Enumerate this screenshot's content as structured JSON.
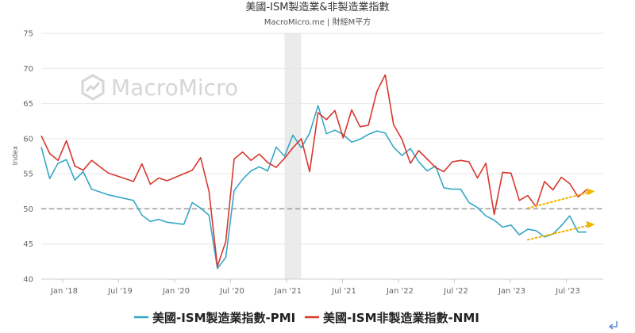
{
  "chart_data": {
    "type": "line",
    "title": "美國-ISM製造業&非製造業指數",
    "subtitle": "MacroMicro.me | 財經M平方",
    "watermark": "MacroMicro",
    "ylabel": "Index",
    "ylim": [
      40,
      75
    ],
    "yticks": [
      "40",
      "45",
      "50",
      "55",
      "60",
      "65",
      "70",
      "75"
    ],
    "xticks": [
      "Jan '18",
      "Jul '19",
      "Jan '20",
      "Jul '20",
      "Jan '21",
      "Jul '21",
      "Jan '22",
      "Jul '22",
      "Jan '23",
      "Jul '23"
    ],
    "reference_line": 50,
    "shaded_period": [
      "2020-02",
      "2020-04"
    ],
    "colors": {
      "PMI": "#35a7c6",
      "NMI": "#d8382e",
      "trend": "#f2b400",
      "reference": "#999999",
      "shade": "#ebebeb"
    },
    "series": [
      {
        "name": "美國-ISM製造業指數-PMI",
        "points": [
          [
            "2017-09",
            58.8
          ],
          [
            "2017-10",
            54.3
          ],
          [
            "2017-11",
            56.5
          ],
          [
            "2017-12",
            57.0
          ],
          [
            "2018-01",
            54.1
          ],
          [
            "2018-02",
            55.3
          ],
          [
            "2018-03",
            52.8
          ],
          [
            "2018-05",
            52.0
          ],
          [
            "2018-08",
            51.2
          ],
          [
            "2018-09",
            49.1
          ],
          [
            "2018-10",
            48.2
          ],
          [
            "2018-11",
            48.5
          ],
          [
            "2018-12",
            48.1
          ],
          [
            "2019-02",
            47.8
          ],
          [
            "2019-03",
            50.9
          ],
          [
            "2019-04",
            50.1
          ],
          [
            "2019-05",
            49.1
          ],
          [
            "2019-06",
            41.5
          ],
          [
            "2019-07",
            43.1
          ],
          [
            "2019-08",
            52.6
          ],
          [
            "2019-09",
            54.2
          ],
          [
            "2019-10",
            55.4
          ],
          [
            "2019-11",
            56.0
          ],
          [
            "2019-12",
            55.4
          ],
          [
            "2020-01",
            58.8
          ],
          [
            "2020-02",
            57.5
          ],
          [
            "2020-03",
            60.5
          ],
          [
            "2020-04",
            58.7
          ],
          [
            "2020-05",
            60.8
          ],
          [
            "2020-06",
            64.7
          ],
          [
            "2020-07",
            60.7
          ],
          [
            "2020-08",
            61.2
          ],
          [
            "2020-09",
            60.6
          ],
          [
            "2020-10",
            59.5
          ],
          [
            "2020-11",
            59.9
          ],
          [
            "2020-12",
            60.6
          ],
          [
            "2021-01",
            61.1
          ],
          [
            "2021-02",
            60.8
          ],
          [
            "2021-03",
            58.8
          ],
          [
            "2021-04",
            57.6
          ],
          [
            "2021-05",
            58.6
          ],
          [
            "2021-06",
            56.7
          ],
          [
            "2021-07",
            55.4
          ],
          [
            "2021-08",
            56.1
          ],
          [
            "2021-09",
            53.0
          ],
          [
            "2021-10",
            52.8
          ],
          [
            "2021-11",
            52.8
          ],
          [
            "2021-12",
            50.9
          ],
          [
            "2022-01",
            50.2
          ],
          [
            "2022-02",
            49.0
          ],
          [
            "2022-03",
            48.4
          ],
          [
            "2022-04",
            47.4
          ],
          [
            "2022-05",
            47.7
          ],
          [
            "2022-06",
            46.3
          ],
          [
            "2022-07",
            47.1
          ],
          [
            "2022-08",
            46.9
          ],
          [
            "2022-09",
            46.0
          ],
          [
            "2022-10",
            46.4
          ],
          [
            "2022-11",
            47.6
          ],
          [
            "2022-12",
            49.0
          ],
          [
            "2023-01",
            46.7
          ],
          [
            "2023-02",
            46.7
          ]
        ]
      },
      {
        "name": "美國-ISM非製造業指數-NMI",
        "points": [
          [
            "2017-09",
            60.4
          ],
          [
            "2017-10",
            57.9
          ],
          [
            "2017-11",
            56.9
          ],
          [
            "2017-12",
            59.7
          ],
          [
            "2018-01",
            56.1
          ],
          [
            "2018-02",
            55.5
          ],
          [
            "2018-03",
            56.9
          ],
          [
            "2018-05",
            55.1
          ],
          [
            "2018-08",
            53.9
          ],
          [
            "2018-09",
            56.4
          ],
          [
            "2018-10",
            53.5
          ],
          [
            "2018-11",
            54.4
          ],
          [
            "2018-12",
            54.0
          ],
          [
            "2019-02",
            55.0
          ],
          [
            "2019-03",
            55.5
          ],
          [
            "2019-04",
            57.3
          ],
          [
            "2019-05",
            52.5
          ],
          [
            "2019-06",
            41.8
          ],
          [
            "2019-07",
            45.4
          ],
          [
            "2019-08",
            57.1
          ],
          [
            "2019-09",
            58.1
          ],
          [
            "2019-10",
            56.9
          ],
          [
            "2019-11",
            57.8
          ],
          [
            "2019-12",
            56.6
          ],
          [
            "2020-01",
            55.9
          ],
          [
            "2020-02",
            57.2
          ],
          [
            "2020-03",
            58.7
          ],
          [
            "2020-04",
            60.0
          ],
          [
            "2020-05",
            55.3
          ],
          [
            "2020-06",
            63.7
          ],
          [
            "2020-07",
            62.7
          ],
          [
            "2020-08",
            64.0
          ],
          [
            "2020-09",
            60.1
          ],
          [
            "2020-10",
            64.1
          ],
          [
            "2020-11",
            61.7
          ],
          [
            "2020-12",
            61.9
          ],
          [
            "2021-01",
            66.7
          ],
          [
            "2021-02",
            69.1
          ],
          [
            "2021-03",
            62.0
          ],
          [
            "2021-04",
            59.9
          ],
          [
            "2021-05",
            56.5
          ],
          [
            "2021-06",
            58.3
          ],
          [
            "2021-07",
            57.1
          ],
          [
            "2021-08",
            55.9
          ],
          [
            "2021-09",
            55.3
          ],
          [
            "2021-10",
            56.7
          ],
          [
            "2021-11",
            56.9
          ],
          [
            "2021-12",
            56.7
          ],
          [
            "2022-01",
            54.4
          ],
          [
            "2022-02",
            56.5
          ],
          [
            "2022-03",
            49.2
          ],
          [
            "2022-04",
            55.2
          ],
          [
            "2022-05",
            55.1
          ],
          [
            "2022-06",
            51.2
          ],
          [
            "2022-07",
            51.9
          ],
          [
            "2022-08",
            50.3
          ],
          [
            "2022-09",
            53.9
          ],
          [
            "2022-10",
            52.7
          ],
          [
            "2022-11",
            54.5
          ],
          [
            "2022-12",
            53.6
          ],
          [
            "2023-01",
            51.7
          ],
          [
            "2023-02",
            52.7
          ]
        ]
      }
    ],
    "trend_arrows": [
      {
        "name": "PMI trend",
        "from": [
          "2022-07",
          45.6
        ],
        "to": [
          "2023-03",
          47.8
        ]
      },
      {
        "name": "NMI trend",
        "from": [
          "2022-07",
          50.1
        ],
        "to": [
          "2023-03",
          52.5
        ]
      }
    ]
  }
}
